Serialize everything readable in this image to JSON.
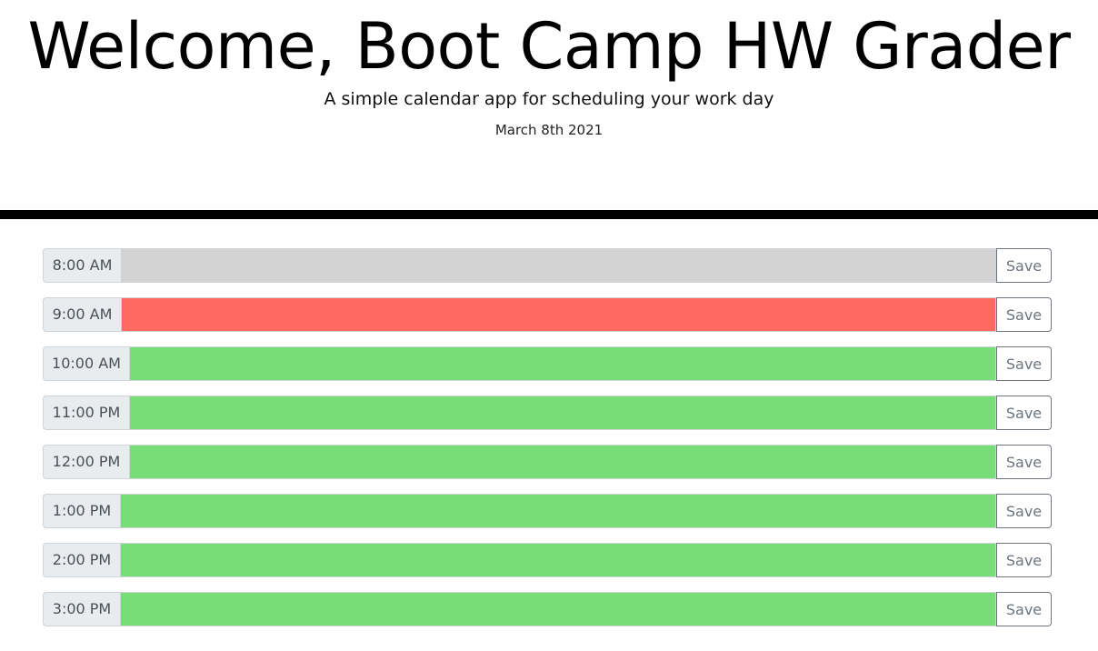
{
  "header": {
    "title": "Welcome, Boot Camp HW Grader",
    "subtitle": "A simple calendar app for scheduling your work day",
    "current_day": "March 8th 2021"
  },
  "colors": {
    "past": "#d3d3d3",
    "present": "#ff6961",
    "future": "#77dd77"
  },
  "time_blocks": [
    {
      "hour": "8:00 AM",
      "status": "past",
      "value": "",
      "save_label": "Save"
    },
    {
      "hour": "9:00 AM",
      "status": "present",
      "value": "",
      "save_label": "Save"
    },
    {
      "hour": "10:00 AM",
      "status": "future",
      "value": "",
      "save_label": "Save"
    },
    {
      "hour": "11:00 PM",
      "status": "future",
      "value": "",
      "save_label": "Save"
    },
    {
      "hour": "12:00 PM",
      "status": "future",
      "value": "",
      "save_label": "Save"
    },
    {
      "hour": "1:00 PM",
      "status": "future",
      "value": "",
      "save_label": "Save"
    },
    {
      "hour": "2:00 PM",
      "status": "future",
      "value": "",
      "save_label": "Save"
    },
    {
      "hour": "3:00 PM",
      "status": "future",
      "value": "",
      "save_label": "Save"
    }
  ]
}
